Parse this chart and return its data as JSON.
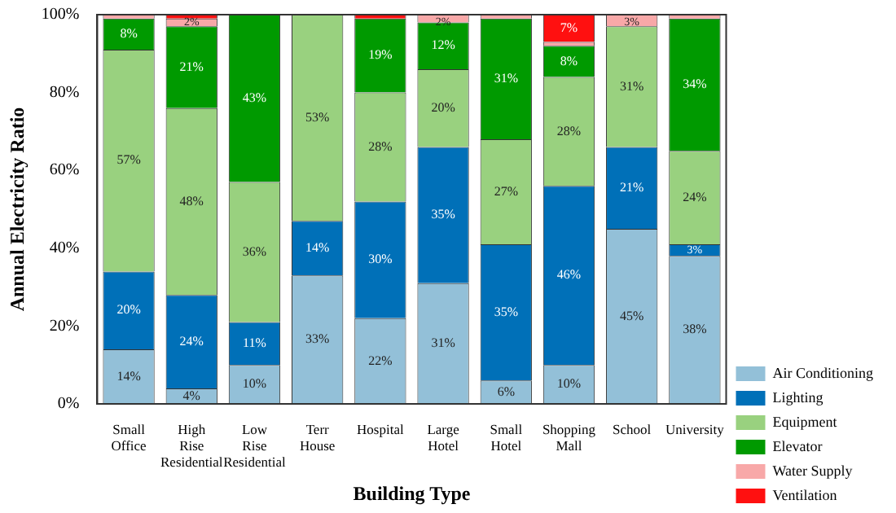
{
  "chart_data": {
    "type": "bar",
    "stacked": true,
    "xlabel": "Building Type",
    "ylabel": "Annual Electricity Ratio",
    "categories": [
      "Small Office",
      "High Rise Residential",
      "Low Rise Residential",
      "Terr House",
      "Hospital",
      "Large Hotel",
      "Small Hotel",
      "Shopping Mall",
      "School",
      "University"
    ],
    "ylim": [
      0,
      100
    ],
    "yticks": [
      {
        "value": 0,
        "label": "0%"
      },
      {
        "value": 20,
        "label": "20%"
      },
      {
        "value": 40,
        "label": "40%"
      },
      {
        "value": 60,
        "label": "60%"
      },
      {
        "value": 80,
        "label": "80%"
      },
      {
        "value": 100,
        "label": "100%"
      }
    ],
    "legend": "right",
    "series": [
      {
        "name": "Air Conditioning",
        "color": "#93c0d8",
        "values": [
          14,
          4,
          10,
          33,
          22,
          31,
          6,
          10,
          45,
          38
        ],
        "value_labels": [
          "14%",
          "4%",
          "10%",
          "33%",
          "22%",
          "31%",
          "6%",
          "10%",
          "45%",
          "38%"
        ]
      },
      {
        "name": "Lighting",
        "color": "#0070b8",
        "values": [
          20,
          24,
          11,
          14,
          30,
          35,
          35,
          46,
          21,
          3
        ],
        "value_labels": [
          "20%",
          "24%",
          "11%",
          "14%",
          "30%",
          "35%",
          "35%",
          "46%",
          "21%",
          "3%"
        ]
      },
      {
        "name": "Equipment",
        "color": "#99d17f",
        "values": [
          57,
          48,
          36,
          53,
          28,
          20,
          27,
          28,
          31,
          24
        ],
        "value_labels": [
          "57%",
          "48%",
          "36%",
          "53%",
          "28%",
          "20%",
          "27%",
          "28%",
          "31%",
          "24%"
        ]
      },
      {
        "name": "Elevator",
        "color": "#009a00",
        "values": [
          8,
          21,
          43,
          0,
          19,
          12,
          31,
          8,
          0,
          34
        ],
        "value_labels": [
          "8%",
          "21%",
          "43%",
          null,
          "19%",
          "12%",
          "31%",
          "8%",
          null,
          "34%"
        ]
      },
      {
        "name": "Water Supply",
        "color": "#f8a8a8",
        "values": [
          1,
          2,
          0,
          0,
          0,
          2,
          1,
          1,
          3,
          1
        ],
        "value_labels": [
          null,
          "2%",
          null,
          null,
          null,
          "2%",
          null,
          null,
          "3%",
          null
        ]
      },
      {
        "name": "Ventilation",
        "color": "#ff1010",
        "values": [
          0,
          1,
          0,
          0,
          1,
          0,
          0,
          7,
          0,
          0
        ],
        "value_labels": [
          null,
          null,
          null,
          null,
          null,
          null,
          null,
          "7%",
          null,
          null
        ]
      }
    ]
  }
}
